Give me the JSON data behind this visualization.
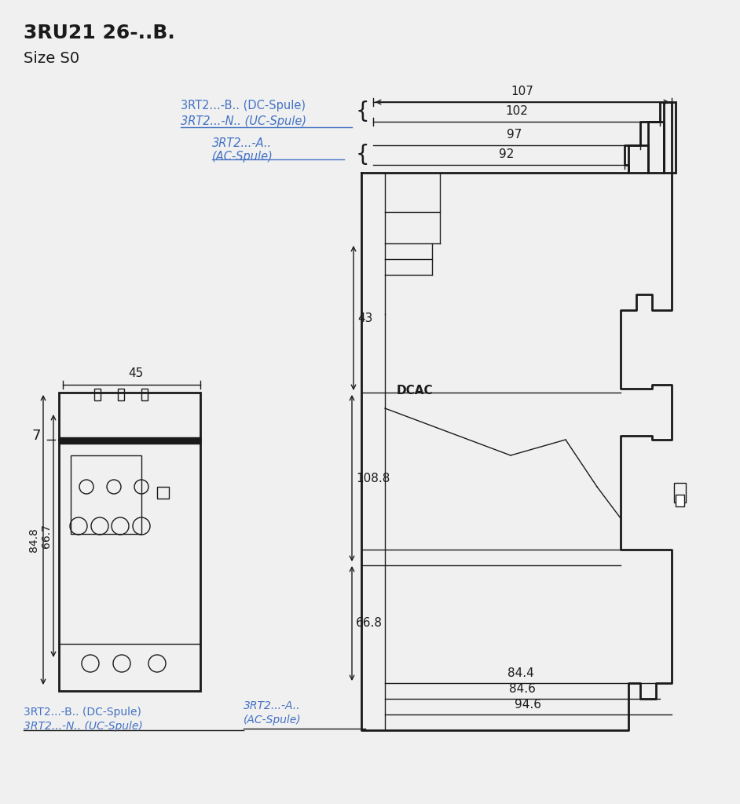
{
  "title": "3RU21 26-..B.",
  "subtitle": "Size S0",
  "bg_color": "#f0f0f0",
  "text_color_blue": "#4472C4",
  "text_color_black": "#1a1a1a",
  "dim_107": "107",
  "dim_102": "102",
  "dim_97": "97",
  "dim_92": "92",
  "dim_43": "43",
  "dim_45": "45",
  "dim_66_8": "66.8",
  "dim_108_8": "108.8",
  "dim_84_8": "84.8",
  "dim_66_7": "66.7",
  "dim_7": "7",
  "dim_DCAC": "DCAC",
  "dim_84_4": "84.4",
  "dim_84_6": "84.6",
  "dim_94_6": "94.6",
  "label_DC": "3RT2...-B.. (DC-Spule)",
  "label_UC": "3RT2...-N.. (UC-Spule)",
  "label_AC": "3RT2...-A..\n(AC-Spule)",
  "label_DC_bottom": "3RT2...-B.. (DC-Spule)",
  "label_UC_bottom": "3RT2...-N.. (UC-Spule)",
  "label_AC_bottom": "3RT2...-A..\n(AC-Spule)"
}
